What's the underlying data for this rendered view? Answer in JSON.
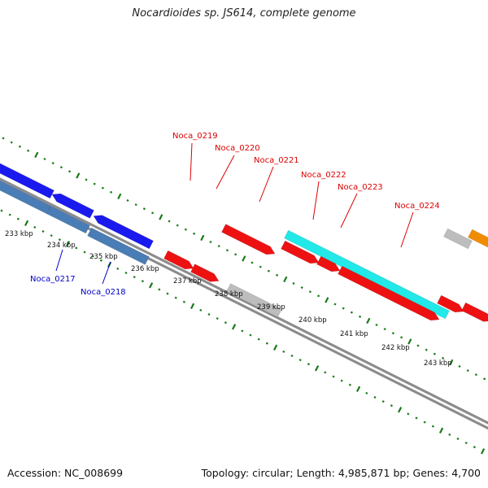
{
  "title": "Nocardioides sp. JS614, complete genome",
  "footer": {
    "accession": "Accession: NC_008699",
    "summary": "Topology: circular; Length: 4,985,871 bp; Genes: 4,700"
  },
  "colors": {
    "background": "#ffffff",
    "backbone": "#8c8c8c",
    "tick": "#1a7a1a",
    "label_red": "#dd0000",
    "label_blue": "#0000cc",
    "gene_blue": "#1a1aee",
    "gene_steelblue": "#4a7db5",
    "gene_red": "#ee1111",
    "gene_grey": "#bdbdbd",
    "gene_cyan": "#22e8e8",
    "gene_orange": "#f08c00"
  },
  "scale_labels": [
    "233 kbp",
    "234 kbp",
    "235 kbp",
    "236 kbp",
    "237 kbp",
    "238 kbp",
    "239 kbp",
    "240 kbp",
    "241 kbp",
    "242 kbp",
    "243 kbp"
  ],
  "gene_labels": [
    {
      "name": "Noca_0217",
      "color": "blue"
    },
    {
      "name": "Noca_0218",
      "color": "blue"
    },
    {
      "name": "Noca_0219",
      "color": "red"
    },
    {
      "name": "Noca_0220",
      "color": "red"
    },
    {
      "name": "Noca_0221",
      "color": "red"
    },
    {
      "name": "Noca_0222",
      "color": "red"
    },
    {
      "name": "Noca_0223",
      "color": "red"
    },
    {
      "name": "Noca_0224",
      "color": "red"
    }
  ]
}
